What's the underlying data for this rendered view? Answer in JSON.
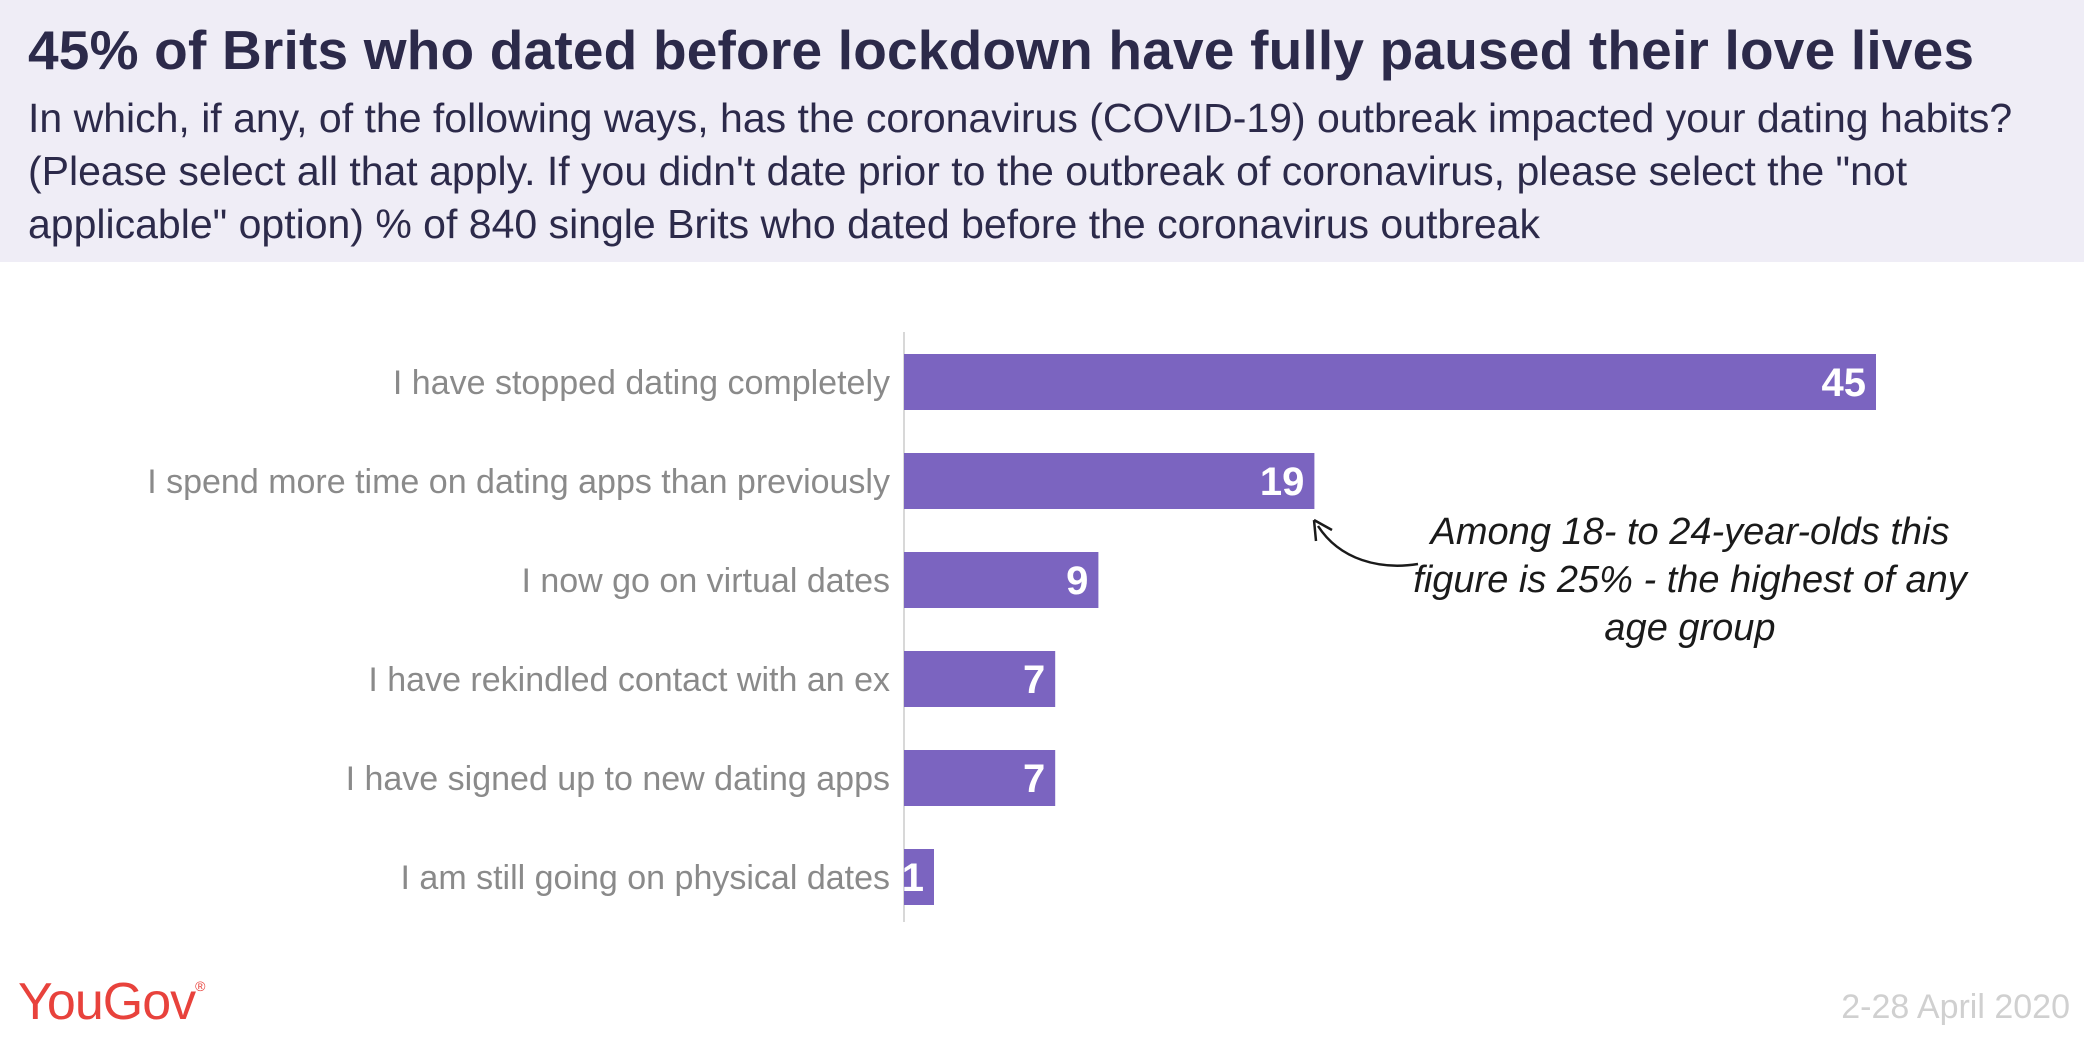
{
  "header": {
    "title": "45% of Brits who dated before lockdown have fully paused their love lives",
    "subtitle": "In which, if any, of the following ways, has the coronavirus (COVID-19) outbreak impacted your dating habits? (Please select all that apply. If you didn't date prior to the outbreak of coronavirus, please select the \"not applicable\" option) % of 840 single Brits who dated before the coronavirus outbreak"
  },
  "chart_data": {
    "type": "bar",
    "orientation": "horizontal",
    "categories": [
      "I have stopped dating completely",
      "I spend more time on dating apps than previously",
      "I now go on virtual dates",
      "I have rekindled contact with an ex",
      "I have signed up to new dating apps",
      "I am still going on physical dates"
    ],
    "values": [
      45,
      19,
      9,
      7,
      7,
      1
    ],
    "value_labels": [
      "45",
      "19",
      "9",
      "7",
      "7",
      "1"
    ],
    "bar_color": "#7b64c0",
    "xlim": [
      0,
      50
    ],
    "grid": false,
    "annotation": "Among 18- to 24-year-olds this figure is 25% - the highest of any age group"
  },
  "footer": {
    "brand": "YouGov",
    "brand_mark": "®",
    "date": "2-28 April 2020"
  },
  "colors": {
    "header_bg": "#efedf6",
    "title": "#2c2a4a",
    "brand": "#e8423c"
  }
}
